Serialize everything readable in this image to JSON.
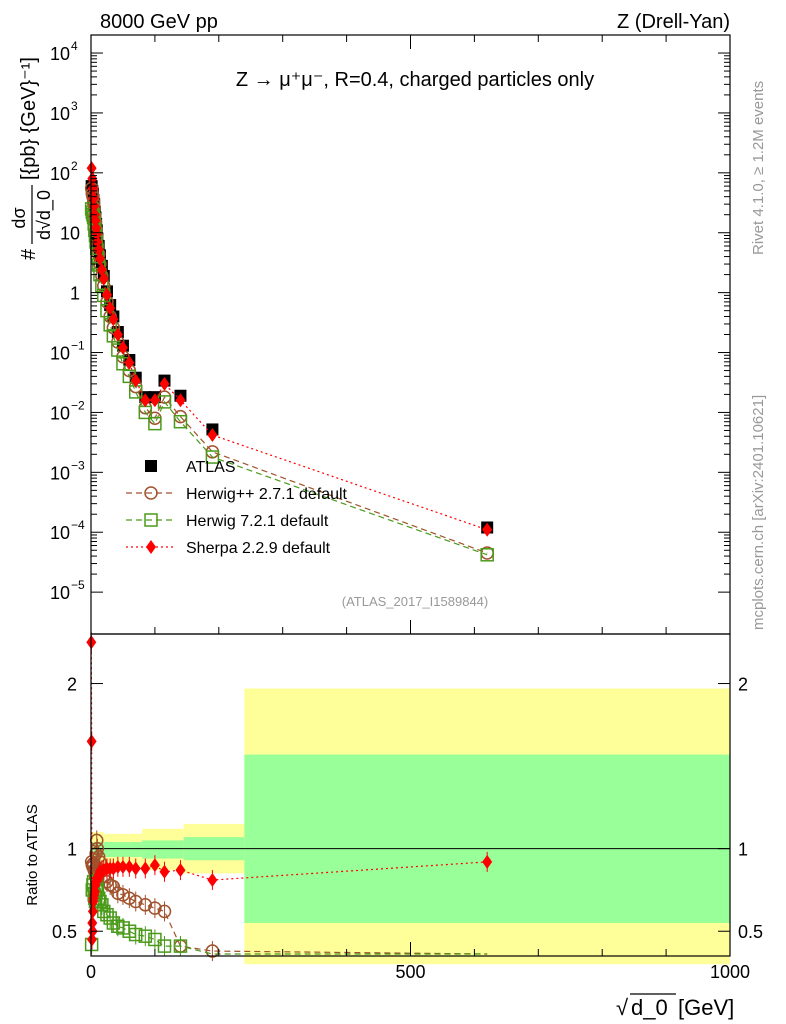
{
  "header": {
    "left": "8000 GeV pp",
    "right": "Z (Drell-Yan)"
  },
  "main_title": "Z → μ⁺μ⁻, R=0.4, charged particles only",
  "side_labels": {
    "rivet": "Rivet 4.1.0, ≥ 1.2M events",
    "mcplots": "mcplots.cern.ch [arXiv:2401.10621]"
  },
  "watermark": "(ATLAS_2017_I1589844)",
  "ylabel_top": {
    "prefix": "#",
    "numerator": "dσ",
    "denominator": "d√d_0",
    "suffix": "[{pb} {GeV}⁻¹]"
  },
  "ylabel_bottom": "Ratio to ATLAS",
  "xlabel": {
    "root": "√",
    "var": "d_0",
    "unit": "[GeV]"
  },
  "legend": [
    {
      "label": "ATLAS",
      "color": "#000000"
    },
    {
      "label": "Herwig++ 2.7.1 default",
      "color": "#a0522d"
    },
    {
      "label": "Herwig 7.2.1 default",
      "color": "#4a9a1a"
    },
    {
      "label": "Sherpa 2.2.9 default",
      "color": "#ff0000"
    }
  ],
  "chart_data": {
    "type": "scatter",
    "xlim": [
      0,
      1000
    ],
    "xticks": [
      {
        "v": 0,
        "label": "0"
      },
      {
        "v": 500,
        "label": "500"
      },
      {
        "v": 1000,
        "label": "1000"
      }
    ],
    "main": {
      "yscale": "log",
      "ylim": [
        2e-06,
        20000
      ],
      "yticks": [
        {
          "v": 1e-05,
          "base": "10",
          "exp": "−5"
        },
        {
          "v": 0.0001,
          "base": "10",
          "exp": "−4"
        },
        {
          "v": 0.001,
          "base": "10",
          "exp": "−3"
        },
        {
          "v": 0.01,
          "base": "10",
          "exp": "−2"
        },
        {
          "v": 0.1,
          "base": "10",
          "exp": "−1"
        },
        {
          "v": 1,
          "base": "1",
          "exp": ""
        },
        {
          "v": 10,
          "base": "10",
          "exp": ""
        },
        {
          "v": 100,
          "base": "10",
          "exp": "2"
        },
        {
          "v": 1000,
          "base": "10",
          "exp": "3"
        },
        {
          "v": 10000,
          "base": "10",
          "exp": "4"
        }
      ],
      "series": [
        {
          "name": "ATLAS",
          "x": [
            1,
            2,
            3,
            4,
            5,
            6,
            7,
            8,
            9,
            10,
            12,
            14,
            17,
            20,
            25,
            30,
            35,
            42,
            50,
            60,
            70,
            85,
            100,
            115,
            140,
            190,
            620
          ],
          "y": [
            60,
            50,
            45,
            35,
            30,
            22,
            18,
            14,
            11,
            8,
            6,
            4.2,
            2.8,
            1.9,
            1.05,
            0.62,
            0.4,
            0.22,
            0.13,
            0.075,
            0.038,
            0.018,
            0.018,
            0.034,
            0.019,
            0.0052,
            0.00012
          ]
        },
        {
          "name": "Herwig++ 2.7.1 default",
          "x": [
            1,
            2,
            3,
            4,
            5,
            6,
            7,
            8,
            9,
            10,
            12,
            14,
            17,
            20,
            25,
            30,
            35,
            42,
            50,
            60,
            70,
            85,
            100,
            115,
            140,
            190,
            620
          ],
          "y": [
            55,
            45,
            40,
            32,
            26,
            19,
            15,
            11,
            8.5,
            6,
            4.4,
            3.0,
            1.9,
            1.3,
            0.7,
            0.4,
            0.26,
            0.15,
            0.085,
            0.05,
            0.027,
            0.012,
            0.008,
            0.018,
            0.0085,
            0.0022,
            4.5e-05
          ]
        },
        {
          "name": "Herwig 7.2.1 default",
          "x": [
            1,
            2,
            3,
            4,
            5,
            6,
            7,
            8,
            9,
            10,
            12,
            14,
            17,
            20,
            25,
            30,
            35,
            42,
            50,
            60,
            70,
            85,
            100,
            115,
            140,
            190,
            620
          ],
          "y": [
            25,
            22,
            20,
            18,
            14,
            11,
            9,
            7,
            5.5,
            4,
            2.9,
            2.0,
            1.3,
            0.9,
            0.5,
            0.29,
            0.19,
            0.11,
            0.065,
            0.04,
            0.022,
            0.01,
            0.0065,
            0.015,
            0.007,
            0.0018,
            4.2e-05
          ]
        },
        {
          "name": "Sherpa 2.2.9 default",
          "x": [
            1,
            2,
            3,
            4,
            5,
            6,
            7,
            8,
            9,
            10,
            12,
            14,
            17,
            20,
            25,
            30,
            35,
            42,
            50,
            60,
            70,
            85,
            100,
            115,
            140,
            190,
            620
          ],
          "y": [
            120,
            80,
            55,
            38,
            28,
            20,
            16,
            12,
            9.5,
            7,
            5.2,
            3.7,
            2.4,
            1.7,
            0.92,
            0.55,
            0.36,
            0.2,
            0.12,
            0.068,
            0.034,
            0.016,
            0.016,
            0.03,
            0.016,
            0.0042,
            0.00011
          ]
        }
      ]
    },
    "ratio": {
      "ylim": [
        0.35,
        2.3
      ],
      "yticks": [
        {
          "v": 0.5,
          "label": "0.5"
        },
        {
          "v": 1,
          "label": "1"
        },
        {
          "v": 2,
          "label": "2"
        }
      ],
      "bands": [
        {
          "x0": 0,
          "x1": 20,
          "lo_inner": 0.96,
          "hi_inner": 1.04,
          "lo_outer": 0.9,
          "hi_outer": 1.1
        },
        {
          "x0": 20,
          "x1": 80,
          "lo_inner": 0.95,
          "hi_inner": 1.04,
          "lo_outer": 0.89,
          "hi_outer": 1.09
        },
        {
          "x0": 80,
          "x1": 145,
          "lo_inner": 0.94,
          "hi_inner": 1.05,
          "lo_outer": 0.87,
          "hi_outer": 1.12
        },
        {
          "x0": 145,
          "x1": 240,
          "lo_inner": 0.93,
          "hi_inner": 1.07,
          "lo_outer": 0.85,
          "hi_outer": 1.15
        },
        {
          "x0": 240,
          "x1": 1000,
          "lo_inner": 0.55,
          "hi_inner": 1.57,
          "lo_outer": 0.3,
          "hi_outer": 1.97
        }
      ],
      "series": [
        {
          "name": "Herwig++ 2.7.1 default",
          "x": [
            1,
            2,
            3,
            4,
            5,
            6,
            7,
            8,
            9,
            10,
            12,
            14,
            17,
            20,
            25,
            30,
            35,
            42,
            50,
            60,
            70,
            85,
            100,
            115,
            140,
            190,
            620
          ],
          "y": [
            0.92,
            0.9,
            0.89,
            0.91,
            0.87,
            0.86,
            0.83,
            0.97,
            1.05,
            1.0,
            0.95,
            0.92,
            0.87,
            0.83,
            0.8,
            0.78,
            0.77,
            0.73,
            0.72,
            0.7,
            0.68,
            0.66,
            0.64,
            0.62,
            0.41,
            0.38,
            0.34
          ]
        },
        {
          "name": "Herwig 7.2.1 default",
          "x": [
            1,
            2,
            3,
            4,
            5,
            6,
            7,
            8,
            9,
            10,
            12,
            14,
            17,
            20,
            25,
            30,
            35,
            42,
            50,
            60,
            70,
            85,
            100,
            115,
            140,
            190,
            620
          ],
          "y": [
            0.42,
            0.75,
            0.78,
            0.8,
            0.72,
            0.7,
            0.68,
            0.74,
            0.78,
            0.75,
            0.7,
            0.68,
            0.66,
            0.62,
            0.6,
            0.58,
            0.55,
            0.53,
            0.52,
            0.5,
            0.48,
            0.47,
            0.45,
            0.41,
            0.41,
            0.34,
            0.34
          ]
        },
        {
          "name": "Sherpa 2.2.9 default",
          "x": [
            0.5,
            1,
            1.5,
            2,
            2.5,
            3,
            3.5,
            4,
            5,
            6,
            7,
            8,
            9,
            10,
            12,
            14,
            17,
            20,
            25,
            30,
            35,
            42,
            50,
            60,
            70,
            85,
            100,
            115,
            140,
            190,
            620
          ],
          "y": [
            2.25,
            1.65,
            0.45,
            0.55,
            0.5,
            0.62,
            0.68,
            0.7,
            0.72,
            0.74,
            0.78,
            0.8,
            0.82,
            0.82,
            0.84,
            0.86,
            0.86,
            0.87,
            0.88,
            0.88,
            0.88,
            0.89,
            0.89,
            0.89,
            0.88,
            0.88,
            0.9,
            0.86,
            0.87,
            0.81,
            0.92
          ]
        }
      ]
    }
  }
}
